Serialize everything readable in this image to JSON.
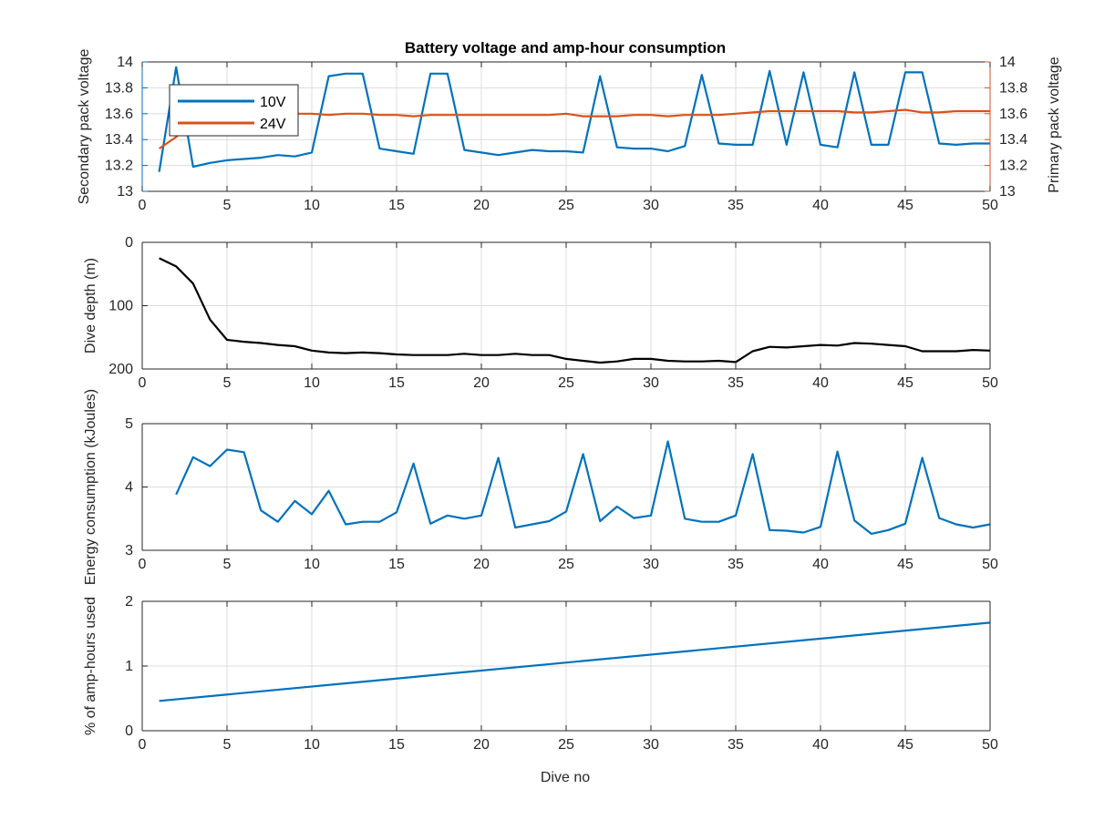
{
  "figure": {
    "title": "Battery voltage and amp-hour consumption",
    "xlabel": "Dive no",
    "colors": {
      "blue": "#0072bd",
      "orange": "#d95319",
      "black": "#000000",
      "grid": "#dcdcdc",
      "axis": "#262626"
    }
  },
  "chart_data": [
    {
      "type": "line",
      "title": "Battery voltage and amp-hour consumption",
      "xlabel": "",
      "ylabel_left": "Secondary pack voltage",
      "ylabel_right": "Primary pack voltage",
      "xlim": [
        0,
        50
      ],
      "ylim_left": [
        13,
        14
      ],
      "ylim_right": [
        13,
        14
      ],
      "xticks": [
        0,
        5,
        10,
        15,
        20,
        25,
        30,
        35,
        40,
        45,
        50
      ],
      "yticks_left": [
        "13",
        "13.2",
        "13.4",
        "13.6",
        "13.8",
        "14"
      ],
      "yticks_right": [
        "13",
        "13.2",
        "13.4",
        "13.6",
        "13.8",
        "14"
      ],
      "grid": true,
      "legend_placement": "top-left",
      "series": [
        {
          "name": "10V",
          "axis": "left",
          "color": "#0072bd",
          "x": [
            1,
            2,
            3,
            4,
            5,
            6,
            7,
            8,
            9,
            10,
            11,
            12,
            13,
            14,
            15,
            16,
            17,
            18,
            19,
            20,
            21,
            22,
            23,
            24,
            25,
            26,
            27,
            28,
            29,
            30,
            31,
            32,
            33,
            34,
            35,
            36,
            37,
            38,
            39,
            40,
            41,
            42,
            43,
            44,
            45,
            46,
            47,
            48,
            49,
            50
          ],
          "y": [
            13.15,
            13.96,
            13.19,
            13.22,
            13.24,
            13.25,
            13.26,
            13.28,
            13.27,
            13.3,
            13.89,
            13.91,
            13.91,
            13.33,
            13.31,
            13.29,
            13.91,
            13.91,
            13.32,
            13.3,
            13.28,
            13.3,
            13.32,
            13.31,
            13.31,
            13.3,
            13.89,
            13.34,
            13.33,
            13.33,
            13.31,
            13.35,
            13.9,
            13.37,
            13.36,
            13.36,
            13.93,
            13.36,
            13.92,
            13.36,
            13.34,
            13.92,
            13.36,
            13.36,
            13.92,
            13.92,
            13.37,
            13.36,
            13.37,
            13.37
          ]
        },
        {
          "name": "24V",
          "axis": "right",
          "color": "#d95319",
          "x": [
            1,
            2,
            3,
            4,
            5,
            6,
            7,
            8,
            9,
            10,
            11,
            12,
            13,
            14,
            15,
            16,
            17,
            18,
            19,
            20,
            21,
            22,
            23,
            24,
            25,
            26,
            27,
            28,
            29,
            30,
            31,
            32,
            33,
            34,
            35,
            36,
            37,
            38,
            39,
            40,
            41,
            42,
            43,
            44,
            45,
            46,
            47,
            48,
            49,
            50
          ],
          "y": [
            13.33,
            13.42,
            13.55,
            13.58,
            13.59,
            13.6,
            13.6,
            13.6,
            13.6,
            13.6,
            13.59,
            13.6,
            13.6,
            13.59,
            13.59,
            13.58,
            13.59,
            13.59,
            13.59,
            13.59,
            13.59,
            13.59,
            13.59,
            13.59,
            13.6,
            13.58,
            13.58,
            13.58,
            13.59,
            13.59,
            13.58,
            13.59,
            13.59,
            13.59,
            13.6,
            13.61,
            13.62,
            13.62,
            13.62,
            13.62,
            13.62,
            13.61,
            13.61,
            13.62,
            13.63,
            13.61,
            13.61,
            13.62,
            13.62,
            13.62
          ]
        }
      ]
    },
    {
      "type": "line",
      "xlabel": "",
      "ylabel": "Dive depth (m)",
      "xlim": [
        0,
        50
      ],
      "ylim": [
        0,
        200
      ],
      "y_reversed": true,
      "xticks": [
        0,
        5,
        10,
        15,
        20,
        25,
        30,
        35,
        40,
        45,
        50
      ],
      "yticks": [
        "0",
        "100",
        "200"
      ],
      "grid": true,
      "series": [
        {
          "color": "#000000",
          "x": [
            1,
            2,
            3,
            4,
            5,
            6,
            7,
            8,
            9,
            10,
            11,
            12,
            13,
            14,
            15,
            16,
            17,
            18,
            19,
            20,
            21,
            22,
            23,
            24,
            25,
            26,
            27,
            28,
            29,
            30,
            31,
            32,
            33,
            34,
            35,
            36,
            37,
            38,
            39,
            40,
            41,
            42,
            43,
            44,
            45,
            46,
            47,
            48,
            49,
            50
          ],
          "y": [
            25,
            38,
            65,
            122,
            154,
            157,
            159,
            162,
            164,
            171,
            174,
            175,
            174,
            175,
            177,
            178,
            178,
            178,
            176,
            178,
            178,
            176,
            178,
            178,
            184,
            187,
            190,
            188,
            184,
            184,
            187,
            188,
            188,
            187,
            189,
            172,
            165,
            166,
            164,
            162,
            163,
            159,
            160,
            162,
            164,
            172,
            172,
            172,
            170,
            171
          ]
        }
      ]
    },
    {
      "type": "line",
      "xlabel": "",
      "ylabel": "Energy consumption (kJoules)",
      "xlim": [
        0,
        50
      ],
      "ylim": [
        3,
        5
      ],
      "xticks": [
        0,
        5,
        10,
        15,
        20,
        25,
        30,
        35,
        40,
        45,
        50
      ],
      "yticks": [
        "3",
        "4",
        "5"
      ],
      "grid": true,
      "series": [
        {
          "color": "#0072bd",
          "x": [
            2,
            3,
            4,
            5,
            6,
            7,
            8,
            9,
            10,
            11,
            12,
            13,
            14,
            15,
            16,
            17,
            18,
            19,
            20,
            21,
            22,
            23,
            24,
            25,
            26,
            27,
            28,
            29,
            30,
            31,
            32,
            33,
            34,
            35,
            36,
            37,
            38,
            39,
            40,
            41,
            42,
            43,
            44,
            45,
            46,
            47,
            48,
            49,
            50
          ],
          "y": [
            3.88,
            4.47,
            4.33,
            4.59,
            4.55,
            3.63,
            3.45,
            3.78,
            3.57,
            3.94,
            3.41,
            3.45,
            3.45,
            3.6,
            4.37,
            3.42,
            3.55,
            3.5,
            3.55,
            4.46,
            3.36,
            3.41,
            3.46,
            3.61,
            4.52,
            3.46,
            3.69,
            3.51,
            3.55,
            4.72,
            3.5,
            3.45,
            3.45,
            3.55,
            4.52,
            3.32,
            3.31,
            3.28,
            3.37,
            4.56,
            3.47,
            3.26,
            3.32,
            3.42,
            4.46,
            3.51,
            3.41,
            3.36,
            3.41
          ]
        }
      ]
    },
    {
      "type": "line",
      "xlabel": "Dive no",
      "ylabel": "% of amp-hours used",
      "xlim": [
        0,
        50
      ],
      "ylim": [
        0,
        2
      ],
      "xticks": [
        0,
        5,
        10,
        15,
        20,
        25,
        30,
        35,
        40,
        45,
        50
      ],
      "yticks": [
        "0",
        "1",
        "2"
      ],
      "grid": true,
      "series": [
        {
          "color": "#0072bd",
          "x": [
            1,
            50
          ],
          "y": [
            0.46,
            1.67
          ]
        }
      ]
    }
  ]
}
